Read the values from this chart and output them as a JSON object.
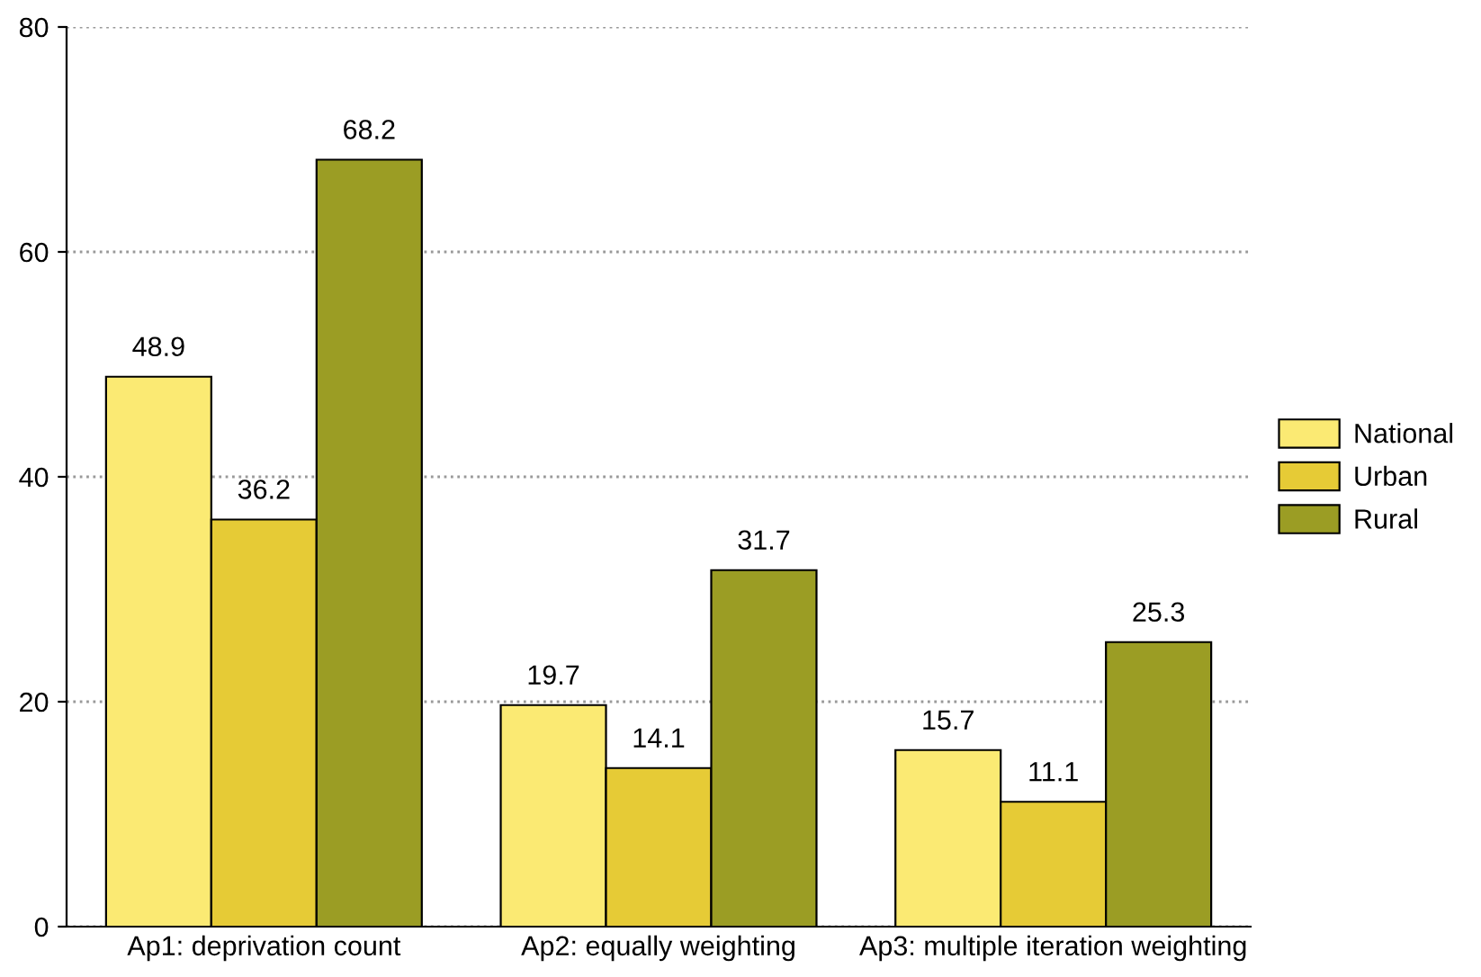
{
  "chart_data": {
    "type": "bar",
    "categories": [
      "Ap1: deprivation count",
      "Ap2: equally weighting",
      "Ap3: multiple iteration weighting"
    ],
    "series": [
      {
        "name": "National",
        "color": "#fbea73",
        "values": [
          48.9,
          19.7,
          15.7
        ]
      },
      {
        "name": "Urban",
        "color": "#e6cb36",
        "values": [
          36.2,
          14.1,
          11.1
        ]
      },
      {
        "name": "Rural",
        "color": "#9b9d24",
        "values": [
          68.2,
          31.7,
          25.3
        ]
      }
    ],
    "ylim": [
      0,
      80
    ],
    "yticks": [
      0,
      20,
      40,
      60,
      80
    ],
    "grid": "y",
    "legend": "right",
    "data_labels": true
  }
}
